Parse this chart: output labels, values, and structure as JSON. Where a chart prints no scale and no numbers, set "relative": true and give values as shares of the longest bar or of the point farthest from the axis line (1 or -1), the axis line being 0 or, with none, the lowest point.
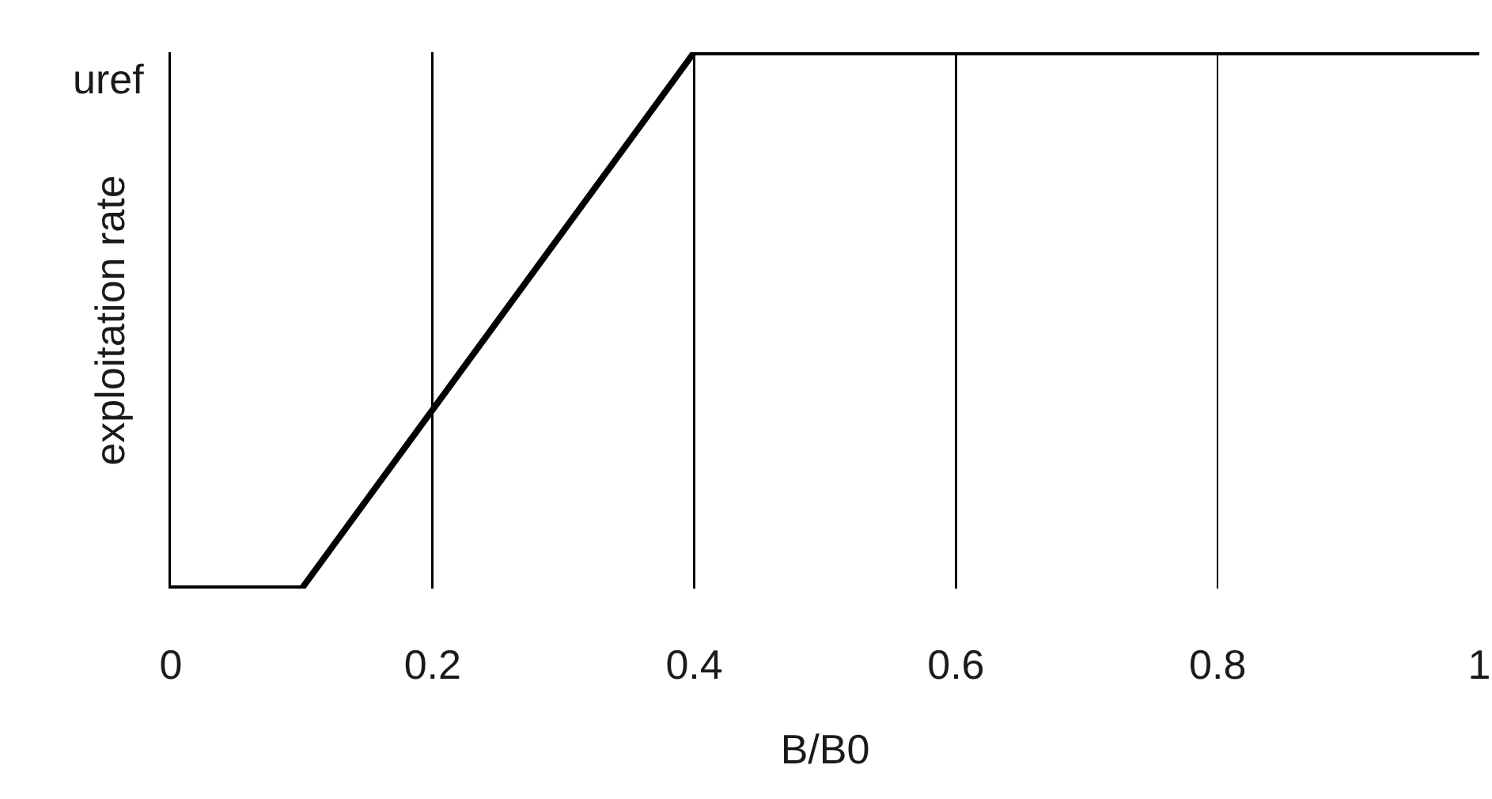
{
  "chart_data": {
    "type": "line",
    "x": [
      0,
      0.1,
      0.4,
      1
    ],
    "values": [
      0,
      0,
      1,
      1
    ],
    "relative": true,
    "color": "#000000",
    "xlim": [
      0,
      1
    ],
    "xticks": [
      0,
      0.2,
      0.4,
      0.6,
      0.8,
      1
    ],
    "xlabel": "B/B0",
    "ylabel": "exploitation rate",
    "grid": "x",
    "marker": "none",
    "line_style": "solid",
    "annotations": [
      "uref"
    ]
  }
}
